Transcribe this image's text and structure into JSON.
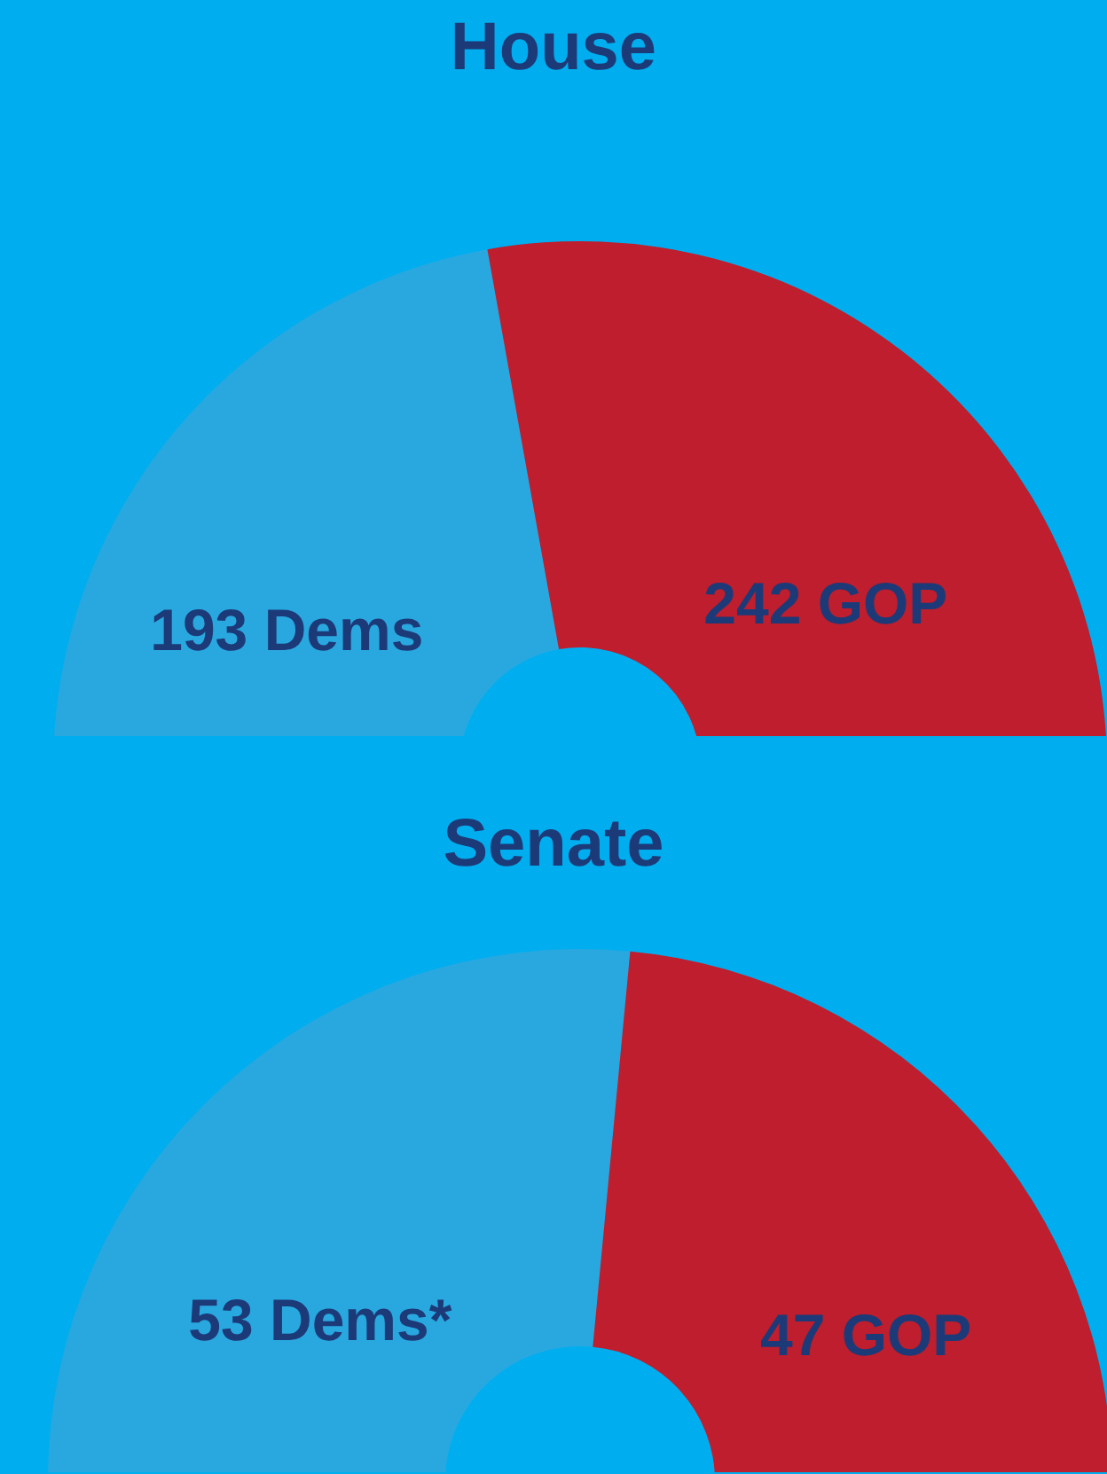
{
  "chart_data": [
    {
      "type": "donut",
      "title": "House",
      "categories": [
        "193 Dems",
        "242 GOP"
      ],
      "values": [
        193,
        242
      ],
      "colors": [
        "#29a8e0",
        "#be1e2d"
      ]
    },
    {
      "type": "donut",
      "title": "Senate",
      "categories": [
        "53 Dems*",
        "47 GOP"
      ],
      "values": [
        53,
        47
      ],
      "colors": [
        "#29a8e0",
        "#be1e2d"
      ]
    }
  ]
}
